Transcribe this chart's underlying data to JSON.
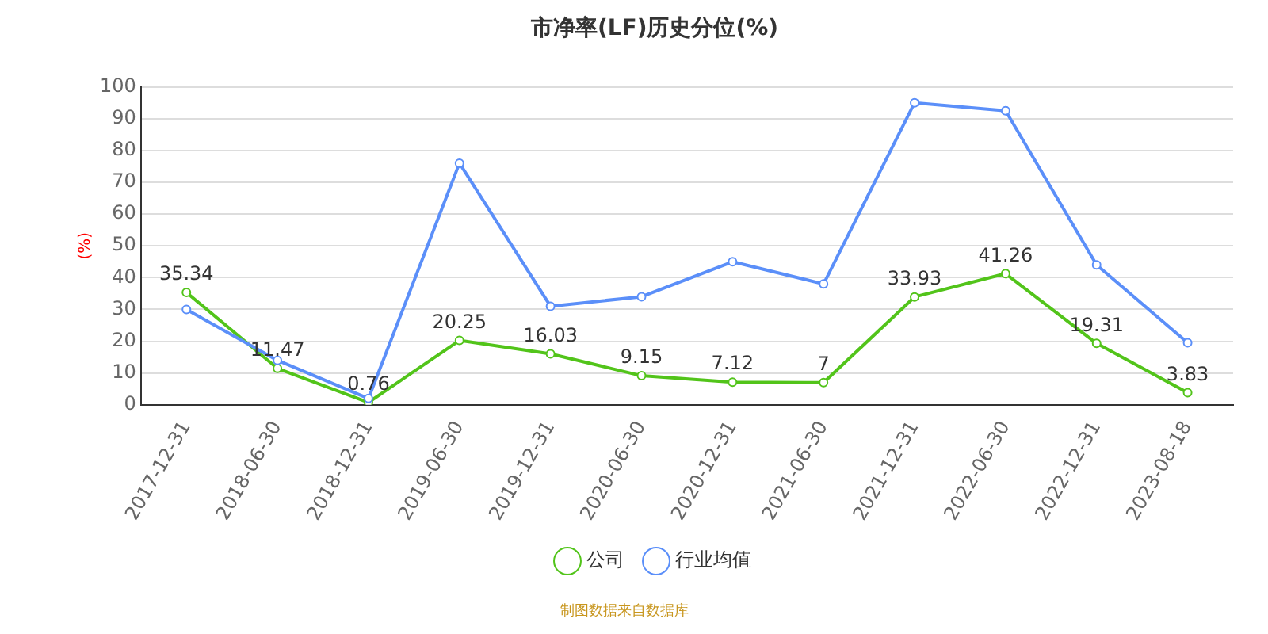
{
  "chart_data": {
    "type": "line",
    "title": "市净率(LF)历史分位(%)",
    "ylabel": "(%)",
    "categories": [
      "2017-12-31",
      "2018-06-30",
      "2018-12-31",
      "2019-06-30",
      "2019-12-31",
      "2020-06-30",
      "2020-12-31",
      "2021-06-30",
      "2021-12-31",
      "2022-06-30",
      "2022-12-31",
      "2023-08-18"
    ],
    "series": [
      {
        "name": "公司",
        "color": "#52c41a",
        "values": [
          35.34,
          11.47,
          0.76,
          20.25,
          16.03,
          9.15,
          7.12,
          7,
          33.93,
          41.26,
          19.31,
          3.83
        ],
        "value_labels": [
          "35.34",
          "11.47",
          "0.76",
          "20.25",
          "16.03",
          "9.15",
          "7.12",
          "7",
          "33.93",
          "41.26",
          "19.31",
          "3.83"
        ]
      },
      {
        "name": "行业均值",
        "color": "#5b8ff9",
        "values": [
          30,
          14,
          2,
          76,
          31,
          34,
          45,
          38,
          95,
          92.5,
          44,
          19.5
        ]
      }
    ],
    "ylim": [
      0,
      100
    ],
    "yticks": [
      0,
      10,
      20,
      30,
      40,
      50,
      60,
      70,
      80,
      90,
      100
    ],
    "grid": "y",
    "legend": "bottom",
    "marker": "circle",
    "line_style": "solid",
    "annotations": [
      "制图数据来自数据库"
    ]
  }
}
